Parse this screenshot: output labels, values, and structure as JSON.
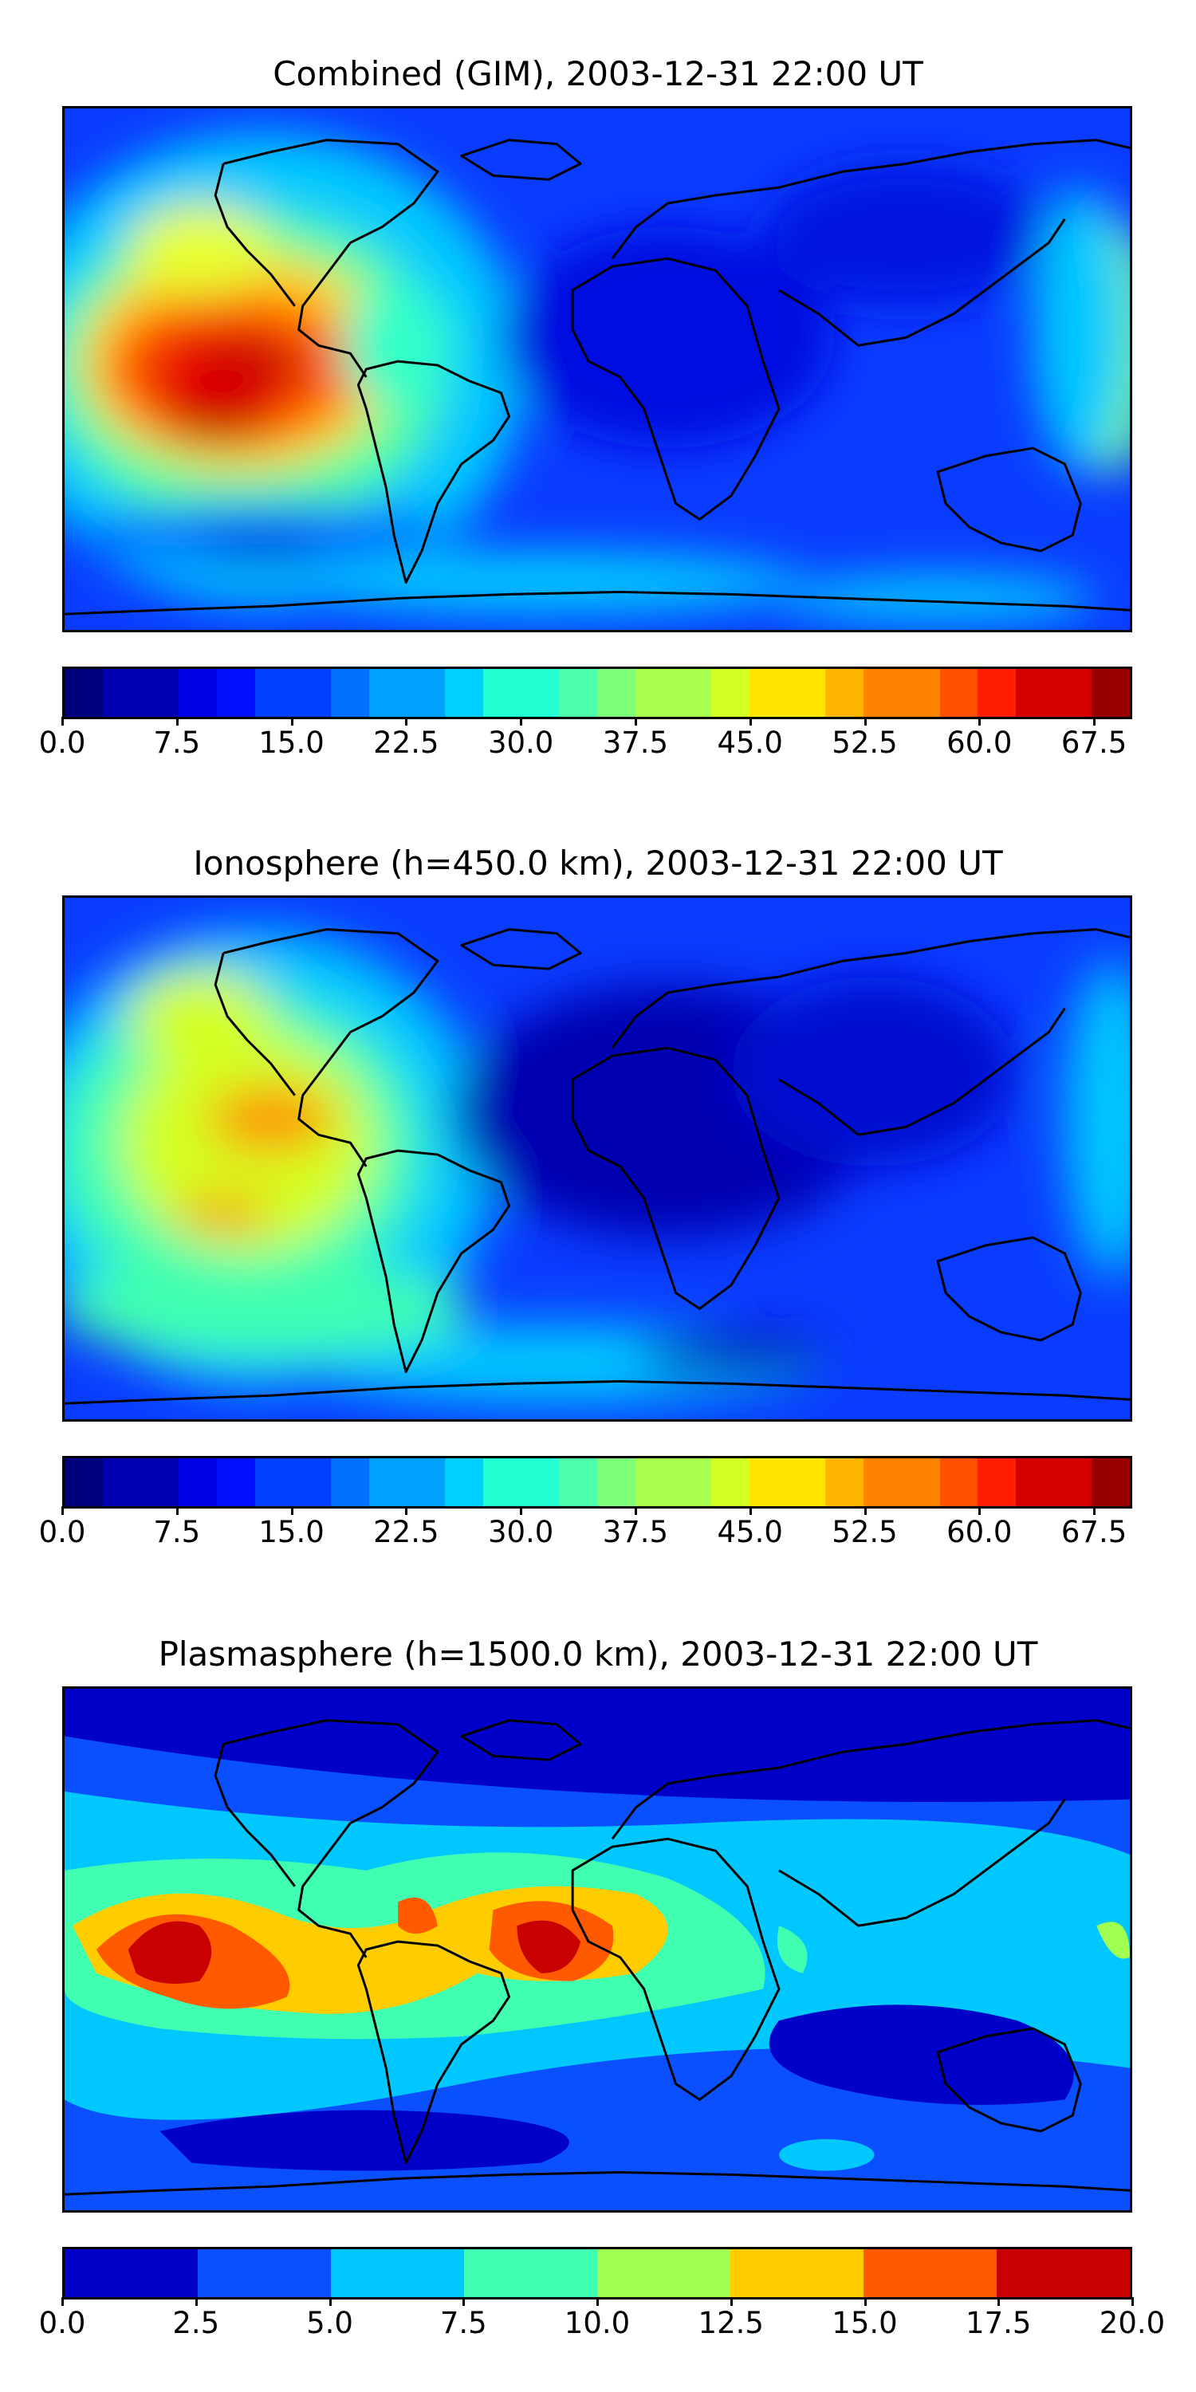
{
  "panels": [
    {
      "title": "Combined (GIM), 2003-12-31 22:00 UT",
      "colorbar": {
        "min": 0.0,
        "max": 70.0,
        "levels": 28,
        "ticks": [
          "0.0",
          "7.5",
          "15.0",
          "22.5",
          "30.0",
          "37.5",
          "45.0",
          "52.5",
          "60.0",
          "67.5"
        ]
      },
      "palette": "jet"
    },
    {
      "title": "Ionosphere  (h=450.0 km), 2003-12-31 22:00 UT",
      "colorbar": {
        "min": 0.0,
        "max": 70.0,
        "levels": 28,
        "ticks": [
          "0.0",
          "7.5",
          "15.0",
          "22.5",
          "30.0",
          "37.5",
          "45.0",
          "52.5",
          "60.0",
          "67.5"
        ]
      },
      "palette": "jet"
    },
    {
      "title": "Plasmasphere (h=1500.0 km), 2003-12-31 22:00 UT",
      "colorbar": {
        "min": 0.0,
        "max": 20.0,
        "levels": 8,
        "ticks": [
          "0.0",
          "2.5",
          "5.0",
          "7.5",
          "10.0",
          "12.5",
          "15.0",
          "17.5",
          "20.0"
        ]
      },
      "palette": "jet"
    }
  ],
  "colors": {
    "coastline": "#000000",
    "jet": [
      "#00007f",
      "#0000b2",
      "#0000e5",
      "#0010ff",
      "#0040ff",
      "#0070ff",
      "#00a0ff",
      "#00d0ff",
      "#23ffd3",
      "#4dffa9",
      "#7dff79",
      "#a9ff4d",
      "#d3ff23",
      "#ffe500",
      "#ffb400",
      "#ff8200",
      "#ff5000",
      "#ff1e00",
      "#d40000",
      "#9a0000"
    ],
    "plasma_levels": [
      "#0000c8",
      "#0a50ff",
      "#00c8ff",
      "#40ffb0",
      "#a0ff50",
      "#ffcc00",
      "#ff5a00",
      "#c80000"
    ]
  }
}
